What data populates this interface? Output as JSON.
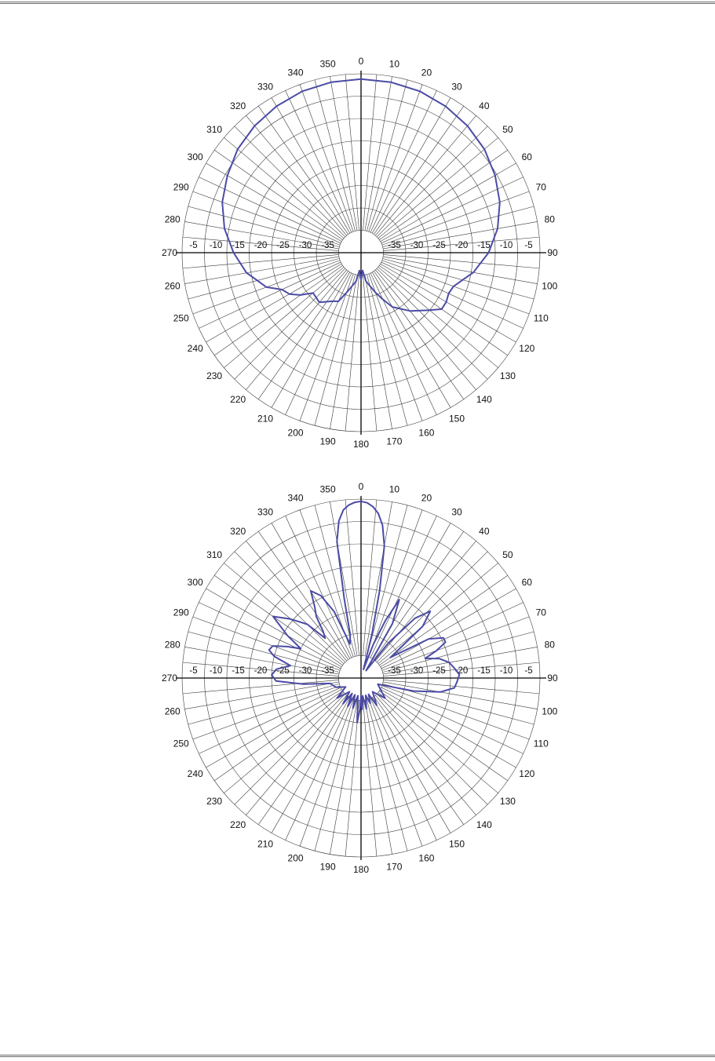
{
  "page": {
    "colors": {
      "trace": "#4b4ba6",
      "grid": "#3a3a3a",
      "axis": "#000000"
    }
  },
  "chart_data": [
    {
      "type": "polar-line",
      "angle_ticks": [
        0,
        10,
        20,
        30,
        40,
        50,
        60,
        70,
        80,
        90,
        100,
        110,
        120,
        130,
        140,
        150,
        160,
        170,
        180,
        190,
        200,
        210,
        220,
        230,
        240,
        250,
        260,
        270,
        280,
        290,
        300,
        310,
        320,
        330,
        340,
        350
      ],
      "radial_ticks_db": [
        -5,
        -10,
        -15,
        -20,
        -25,
        -30,
        -35
      ],
      "radial_range_db": [
        -40,
        0
      ],
      "grid": true,
      "series": [
        {
          "angles_deg": [
            0,
            10,
            20,
            30,
            40,
            50,
            60,
            70,
            80,
            90,
            100,
            105,
            110,
            115,
            120,
            125,
            130,
            140,
            150,
            155,
            160,
            170,
            175,
            180,
            185,
            190,
            200,
            205,
            210,
            220,
            230,
            235,
            240,
            245,
            250,
            255,
            260,
            270,
            280,
            290,
            300,
            310,
            320,
            330,
            340,
            350,
            360
          ],
          "gain_db": [
            -1.2,
            -1.3,
            -1.6,
            -2.2,
            -3.0,
            -4.0,
            -5.4,
            -7.0,
            -9.0,
            -11.5,
            -14.5,
            -16.5,
            -18.0,
            -18.4,
            -18.0,
            -18.0,
            -20.0,
            -23.0,
            -26.0,
            -28.5,
            -30.5,
            -33.5,
            -36.0,
            -34.0,
            -36.0,
            -33.5,
            -30.5,
            -28.0,
            -27.5,
            -25.5,
            -26.0,
            -23.5,
            -21.5,
            -20.5,
            -17.5,
            -16.0,
            -14.0,
            -11.5,
            -9.0,
            -7.0,
            -5.5,
            -4.0,
            -3.0,
            -2.2,
            -1.6,
            -1.3,
            -1.2
          ]
        }
      ]
    },
    {
      "type": "polar-line",
      "angle_ticks": [
        0,
        10,
        20,
        30,
        40,
        50,
        60,
        70,
        80,
        90,
        100,
        110,
        120,
        130,
        140,
        150,
        160,
        170,
        180,
        190,
        200,
        210,
        220,
        230,
        240,
        250,
        260,
        270,
        280,
        290,
        300,
        310,
        320,
        330,
        340,
        350
      ],
      "radial_ticks_db": [
        -5,
        -10,
        -15,
        -20,
        -25,
        -30,
        -35
      ],
      "radial_range_db": [
        -40,
        0
      ],
      "grid": true,
      "series": [
        {
          "angles_deg": [
            0,
            2,
            4,
            6,
            8,
            10,
            12,
            14,
            16,
            20,
            23,
            26,
            30,
            34,
            38,
            42,
            46,
            50,
            55,
            60,
            64,
            67,
            70,
            73,
            76,
            80,
            84,
            88,
            92,
            96,
            100,
            104,
            110,
            120,
            130,
            140,
            150,
            155,
            160,
            165,
            170,
            175,
            178,
            180,
            182,
            185,
            190,
            195,
            200,
            205,
            210,
            215,
            220,
            230,
            240,
            250,
            260,
            264,
            268,
            272,
            276,
            280,
            284,
            287,
            290,
            293,
            296,
            300,
            305,
            310,
            315,
            318,
            321,
            324,
            327,
            330,
            334,
            338,
            342,
            346,
            348,
            350,
            352,
            354,
            356,
            358,
            360
          ],
          "gain_db": [
            -0.5,
            -0.8,
            -1.6,
            -3.0,
            -5.5,
            -10.0,
            -20.0,
            -30.0,
            -38.0,
            -32.0,
            -26.0,
            -20.5,
            -26.0,
            -38.0,
            -30.0,
            -22.0,
            -18.5,
            -22.0,
            -32.0,
            -22.5,
            -19.5,
            -19.5,
            -22.0,
            -25.0,
            -22.0,
            -20.0,
            -19.0,
            -18.0,
            -18.5,
            -19.0,
            -22.0,
            -28.0,
            -36.0,
            -35.0,
            -33.0,
            -36.0,
            -33.0,
            -36.0,
            -34.0,
            -36.0,
            -33.0,
            -36.0,
            -33.0,
            -36.0,
            -33.0,
            -30.0,
            -36.0,
            -33.0,
            -36.0,
            -33.0,
            -36.0,
            -33.0,
            -36.0,
            -33.0,
            -36.0,
            -34.0,
            -33.0,
            -27.0,
            -21.0,
            -20.0,
            -21.0,
            -24.0,
            -20.0,
            -18.5,
            -19.0,
            -22.0,
            -25.0,
            -21.0,
            -16.0,
            -19.5,
            -23.0,
            -28.0,
            -26.5,
            -23.0,
            -21.0,
            -17.5,
            -19.5,
            -24.0,
            -32.0,
            -30.0,
            -22.0,
            -9.0,
            -4.5,
            -2.2,
            -1.2,
            -0.7,
            -0.5
          ]
        }
      ]
    }
  ]
}
